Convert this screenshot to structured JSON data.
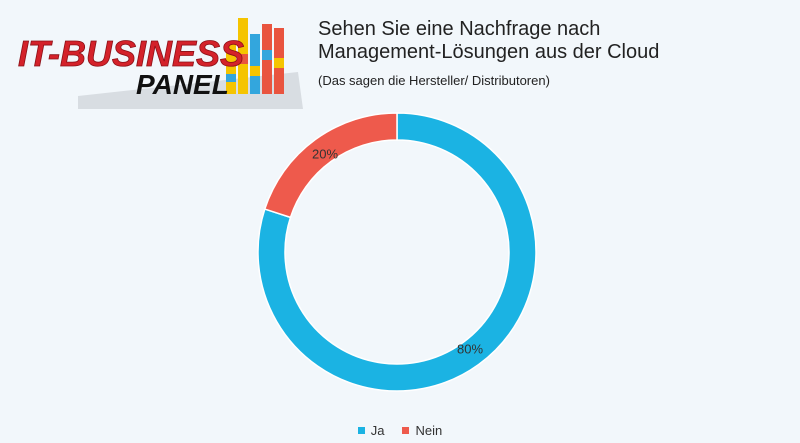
{
  "logo": {
    "line1": "IT-BUSINESS",
    "line2": "PANEL"
  },
  "header": {
    "title_line1": "Sehen Sie eine Nachfrage nach",
    "title_line2": "Management-Lösungen aus der Cloud",
    "subtitle": "(Das sagen die Hersteller/ Distributoren)"
  },
  "colors": {
    "ja": "#1bb3e3",
    "nein": "#ee5a4c",
    "background": "#f2f7fb"
  },
  "chart_data": {
    "type": "pie",
    "variant": "donut",
    "title": "Sehen Sie eine Nachfrage nach Management-Lösungen aus der Cloud",
    "subtitle": "(Das sagen die Hersteller/ Distributoren)",
    "categories": [
      "Ja",
      "Nein"
    ],
    "values": [
      80,
      20
    ],
    "data_labels": [
      "80%",
      "20%"
    ],
    "legend": [
      "Ja",
      "Nein"
    ],
    "legend_position": "bottom"
  }
}
